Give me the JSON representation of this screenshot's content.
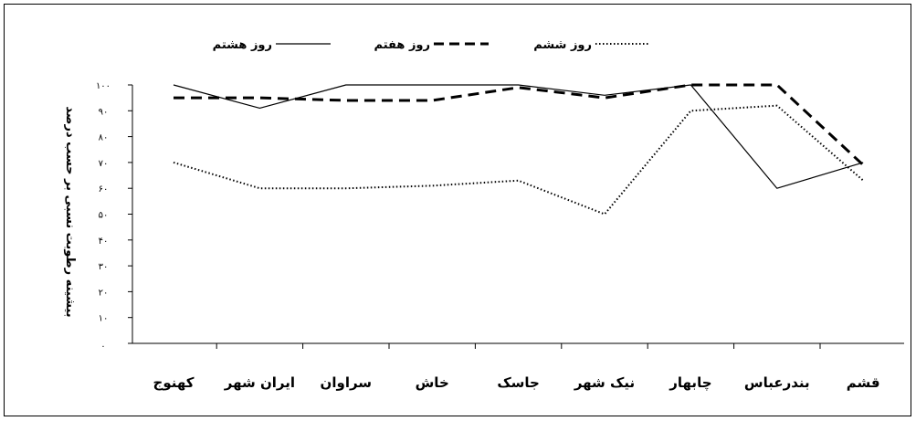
{
  "chart_data": {
    "type": "line",
    "categories": [
      "کهنوج",
      "ایران شهر",
      "سراوان",
      "خاش",
      "جاسک",
      "نیک شهر",
      "چابهار",
      "بندرعباس",
      "قشم"
    ],
    "ylabel": "بیشینه رطوبت نسبی بر حسب درصد",
    "ylim": [
      0,
      100
    ],
    "yticks": [
      "۱۰۰",
      "۹۰",
      "۸۰",
      "۷۰",
      "۶۰",
      "۵۰",
      "۴۰",
      "۳۰",
      "۲۰",
      "۱۰",
      "."
    ],
    "legend_position": "top",
    "series": [
      {
        "name": "روز هشتم",
        "style": "solid",
        "color": "#000000",
        "values": [
          100,
          91,
          100,
          100,
          100,
          96,
          100,
          60,
          70
        ]
      },
      {
        "name": "روز هفتم",
        "style": "dashed",
        "color": "#000000",
        "values": [
          95,
          95,
          94,
          94,
          99,
          95,
          100,
          100,
          69
        ]
      },
      {
        "name": "روز ششم",
        "style": "dotted",
        "color": "#000000",
        "values": [
          70,
          60,
          60,
          61,
          63,
          50,
          90,
          92,
          63
        ]
      }
    ]
  }
}
